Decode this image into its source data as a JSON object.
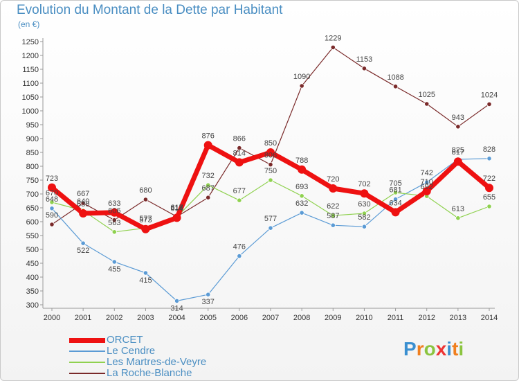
{
  "title": "Evolution du Montant de la Dette par Habitant",
  "unit_label": "(en €)",
  "logo": {
    "letters": [
      "P",
      "r",
      "o",
      "x",
      "i",
      "t",
      "i"
    ],
    "colors": [
      "#3a8fd0",
      "#f07f1e",
      "#8bc43f",
      "#e33",
      "#3a8fd0",
      "#f07f1e",
      "#8bc43f"
    ]
  },
  "chart_data": {
    "type": "line",
    "title": "Evolution du Montant de la Dette par Habitant",
    "ylabel": "(en €)",
    "xlabel": "",
    "x": [
      "2000",
      "2001",
      "2002",
      "2003",
      "2004",
      "2005",
      "2006",
      "2007",
      "2008",
      "2009",
      "2010",
      "2011",
      "2012",
      "2013",
      "2014"
    ],
    "ylim": [
      300,
      1250
    ],
    "yticks": [
      300,
      350,
      400,
      450,
      500,
      550,
      600,
      650,
      700,
      750,
      800,
      850,
      900,
      950,
      1000,
      1050,
      1100,
      1150,
      1200,
      1250
    ],
    "grid": false,
    "legend_position": "bottom-left",
    "series": [
      {
        "name": "ORCET",
        "color": "#ee1111",
        "width": 7,
        "marker": 6,
        "values": [
          723,
          630,
          633,
          573,
          614,
          876,
          814,
          850,
          788,
          720,
          702,
          634,
          710,
          817,
          722
        ]
      },
      {
        "name": "Le Cendre",
        "color": "#5b9bd5",
        "width": 1.2,
        "marker": 3.2,
        "values": [
          648,
          522,
          455,
          415,
          314,
          337,
          476,
          577,
          632,
          587,
          582,
          681,
          742,
          825,
          828
        ]
      },
      {
        "name": "Les Martres-de-Veyre",
        "color": "#8fd14f",
        "width": 1.2,
        "marker": 3.2,
        "values": [
          670,
          640,
          563,
          577,
          617,
          732,
          677,
          750,
          693,
          622,
          630,
          705,
          692,
          613,
          655
        ]
      },
      {
        "name": "La Roche-Blanche",
        "color": "#7a2a2a",
        "width": 1.2,
        "marker": 3.2,
        "values": [
          590,
          667,
          606,
          680,
          618,
          687,
          866,
          806,
          1090,
          1229,
          1153,
          1088,
          1025,
          943,
          1024
        ]
      }
    ]
  }
}
